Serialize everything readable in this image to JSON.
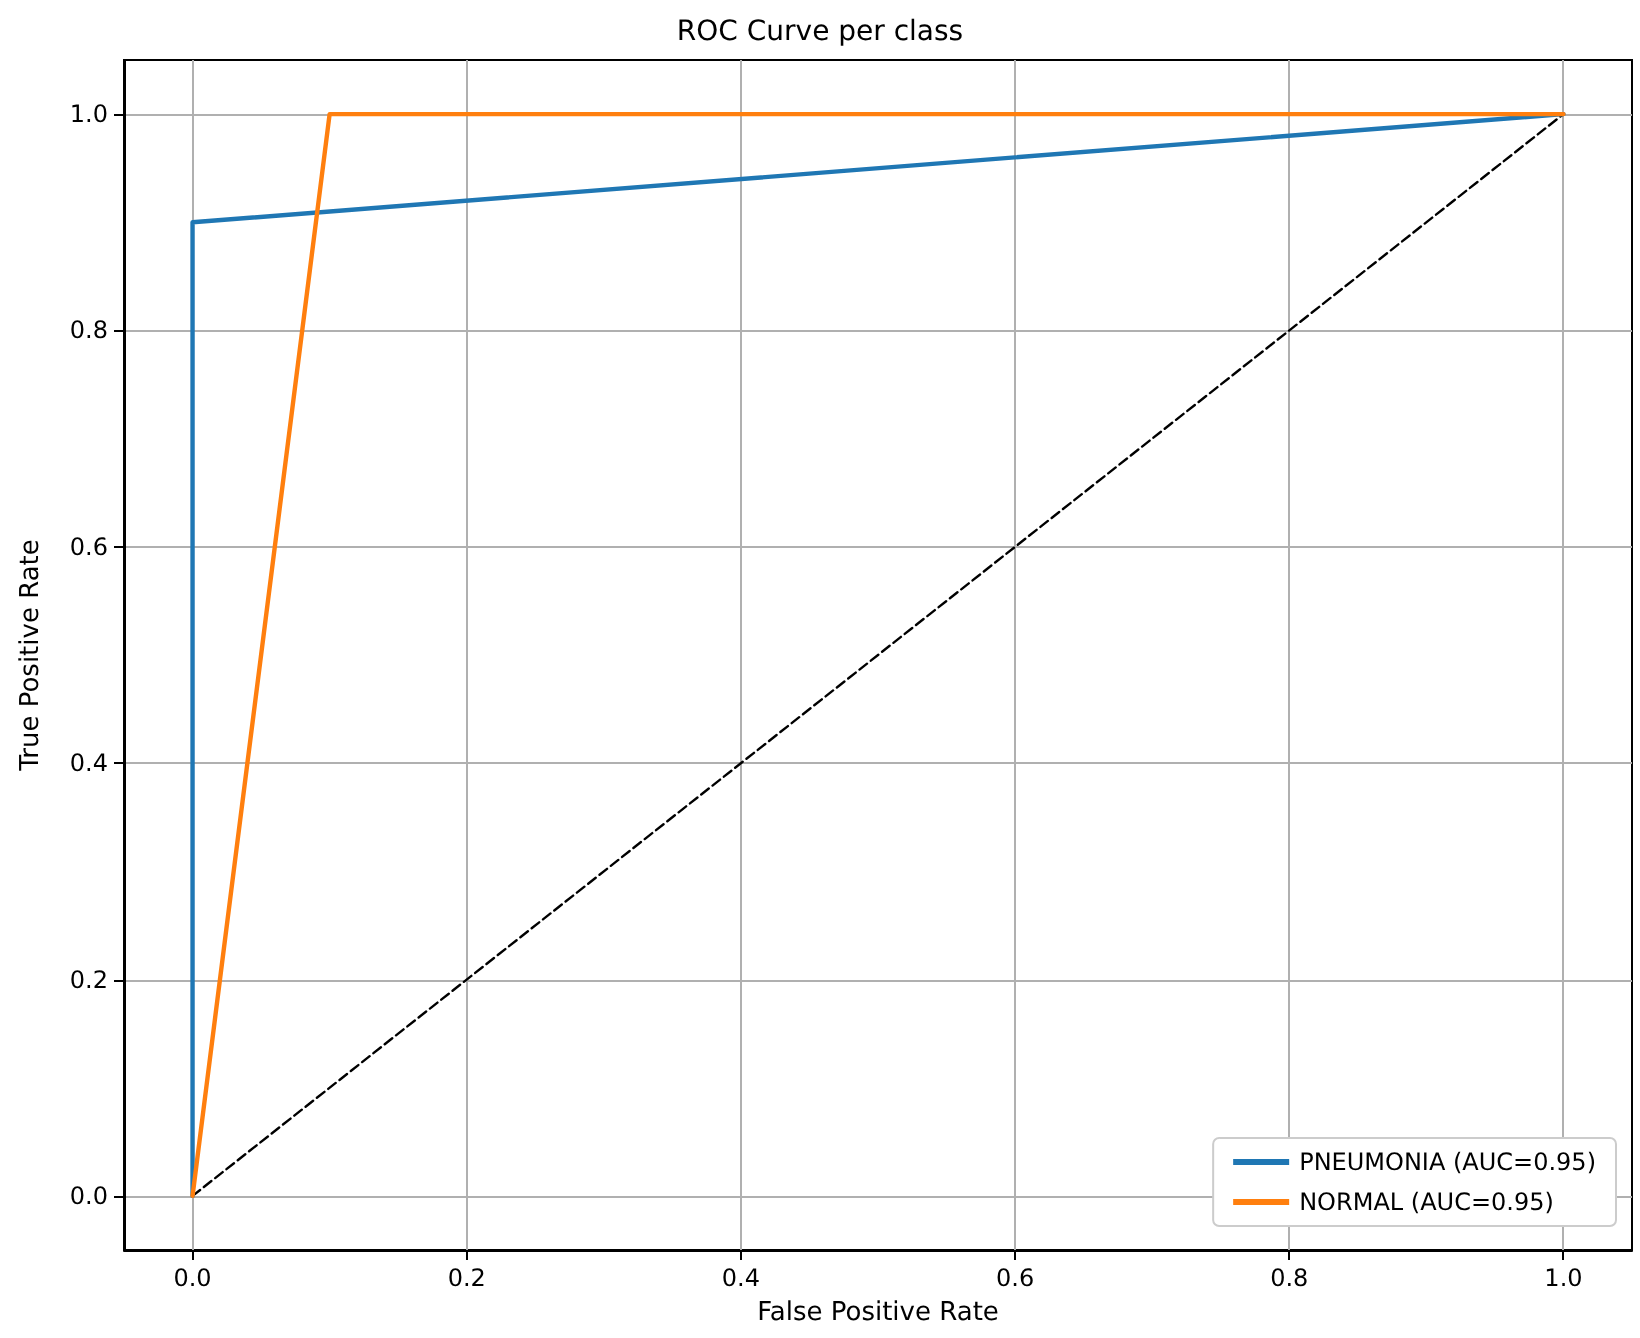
{
  "chart_data": {
    "type": "line",
    "title": "ROC Curve per class",
    "xlabel": "False Positive Rate",
    "ylabel": "True Positive Rate",
    "xlim": [
      -0.05,
      1.05
    ],
    "ylim": [
      -0.05,
      1.05
    ],
    "xticks": [
      {
        "value": 0,
        "label": "0.0"
      },
      {
        "value": 0.2,
        "label": "0.2"
      },
      {
        "value": 0.4,
        "label": "0.4"
      },
      {
        "value": 0.6,
        "label": "0.6"
      },
      {
        "value": 0.8,
        "label": "0.8"
      },
      {
        "value": 1,
        "label": "1.0"
      }
    ],
    "yticks": [
      {
        "value": 0,
        "label": "0.0"
      },
      {
        "value": 0.2,
        "label": "0.2"
      },
      {
        "value": 0.4,
        "label": "0.4"
      },
      {
        "value": 0.6,
        "label": "0.6"
      },
      {
        "value": 0.8,
        "label": "0.8"
      },
      {
        "value": 1,
        "label": "1.0"
      }
    ],
    "series": [
      {
        "name": "PNEUMONIA (AUC=0.95)",
        "color": "#1f77b4",
        "x": [
          0,
          0,
          1
        ],
        "values": [
          0,
          0.9,
          1
        ]
      },
      {
        "name": "NORMAL (AUC=0.95)",
        "color": "#ff7f0e",
        "x": [
          0,
          0.1,
          1
        ],
        "values": [
          0,
          1,
          1
        ]
      },
      {
        "color": "#000000",
        "x": [
          0,
          1
        ],
        "values": [
          0,
          1
        ],
        "line_style": "dashed"
      }
    ],
    "grid": true,
    "legend": "bottom right",
    "marker": "none",
    "line_style": "solid"
  }
}
